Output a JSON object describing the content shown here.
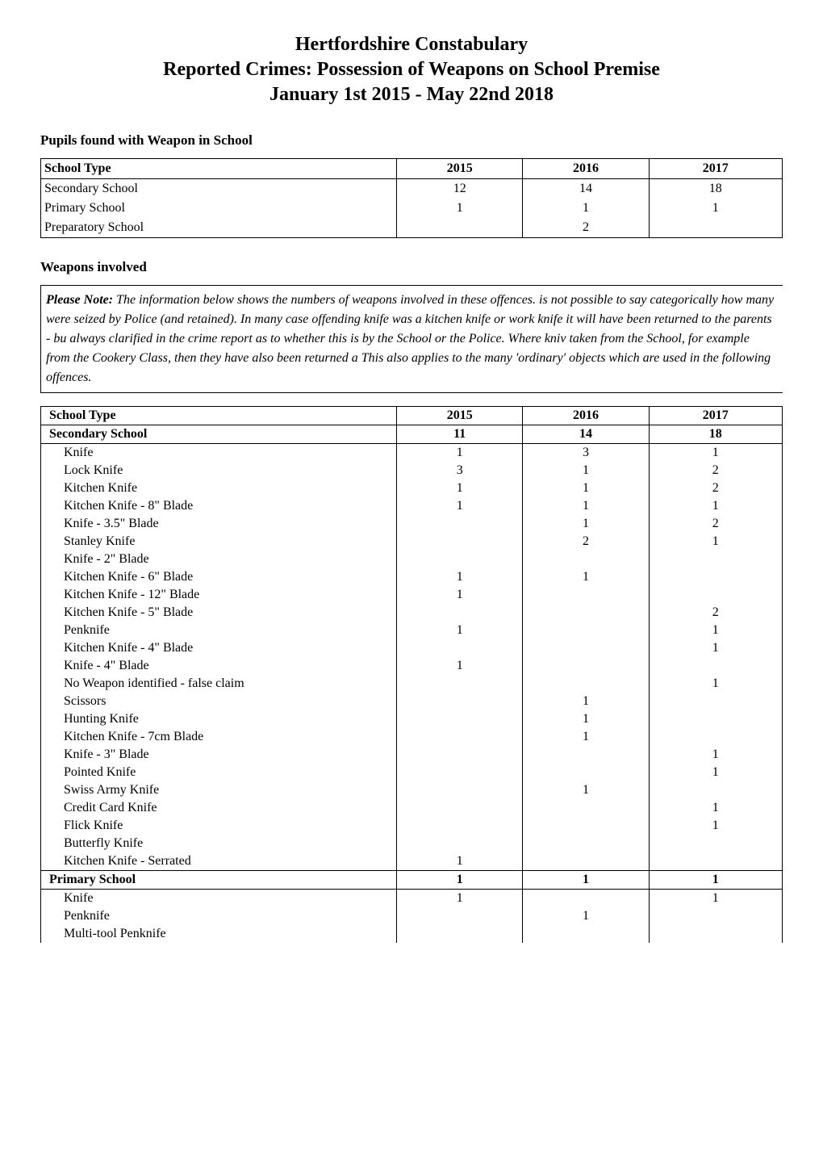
{
  "title": {
    "line1": "Hertfordshire Constabulary",
    "line2": "Reported Crimes: Possession of Weapons on School Premise",
    "line3": "January 1st 2015 - May 22nd 2018"
  },
  "section1": {
    "heading": "Pupils found with Weapon in School",
    "columns": [
      "School Type",
      "2015",
      "2016",
      "2017"
    ],
    "rows": [
      {
        "label": "Secondary School",
        "y2015": "12",
        "y2016": "14",
        "y2017": "18"
      },
      {
        "label": "Primary School",
        "y2015": "1",
        "y2016": "1",
        "y2017": "1"
      },
      {
        "label": "Preparatory School",
        "y2015": "",
        "y2016": "2",
        "y2017": ""
      }
    ]
  },
  "section2": {
    "heading": "Weapons involved",
    "note_lead": "Please Note:",
    "note_body": " The information below shows the numbers of weapons involved in these offences. is not possible to say categorically how many were seized by Police (and retained). In many case offending knife was a kitchen knife or work knife it will have been returned to the parents -  bu always clarified in the crime report as to whether this is by the School or the Police. Where kniv taken from the School, for example from the Cookery Class, then they have also been returned a  This also applies to the many 'ordinary' objects which are used in the following offences.",
    "columns": [
      "School Type",
      "2015",
      "2016",
      "2017"
    ],
    "groups": [
      {
        "label": "Secondary School",
        "totals": {
          "y2015": "11",
          "y2016": "14",
          "y2017": "18"
        },
        "items": [
          {
            "label": "Knife",
            "y2015": "1",
            "y2016": "3",
            "y2017": "1"
          },
          {
            "label": "Lock Knife",
            "y2015": "3",
            "y2016": "1",
            "y2017": "2"
          },
          {
            "label": "Kitchen Knife",
            "y2015": "1",
            "y2016": "1",
            "y2017": "2"
          },
          {
            "label": "Kitchen Knife - 8\" Blade",
            "y2015": "1",
            "y2016": "1",
            "y2017": "1"
          },
          {
            "label": "Knife - 3.5\" Blade",
            "y2015": "",
            "y2016": "1",
            "y2017": "2"
          },
          {
            "label": "Stanley Knife",
            "y2015": "",
            "y2016": "2",
            "y2017": "1"
          },
          {
            "label": "Knife - 2\" Blade",
            "y2015": "",
            "y2016": "",
            "y2017": ""
          },
          {
            "label": "Kitchen Knife - 6\" Blade",
            "y2015": "1",
            "y2016": "1",
            "y2017": ""
          },
          {
            "label": "Kitchen Knife - 12\" Blade",
            "y2015": "1",
            "y2016": "",
            "y2017": ""
          },
          {
            "label": "Kitchen Knife - 5\" Blade",
            "y2015": "",
            "y2016": "",
            "y2017": "2"
          },
          {
            "label": "Penknife",
            "y2015": "1",
            "y2016": "",
            "y2017": "1"
          },
          {
            "label": "Kitchen Knife - 4\" Blade",
            "y2015": "",
            "y2016": "",
            "y2017": "1"
          },
          {
            "label": "Knife - 4\" Blade",
            "y2015": "1",
            "y2016": "",
            "y2017": ""
          },
          {
            "label": "No Weapon identified - false claim",
            "y2015": "",
            "y2016": "",
            "y2017": "1"
          },
          {
            "label": "Scissors",
            "y2015": "",
            "y2016": "1",
            "y2017": ""
          },
          {
            "label": "Hunting Knife",
            "y2015": "",
            "y2016": "1",
            "y2017": ""
          },
          {
            "label": "Kitchen Knife - 7cm Blade",
            "y2015": "",
            "y2016": "1",
            "y2017": ""
          },
          {
            "label": "Knife - 3\" Blade",
            "y2015": "",
            "y2016": "",
            "y2017": "1"
          },
          {
            "label": "Pointed Knife",
            "y2015": "",
            "y2016": "",
            "y2017": "1"
          },
          {
            "label": "Swiss Army Knife",
            "y2015": "",
            "y2016": "1",
            "y2017": ""
          },
          {
            "label": "Credit Card Knife",
            "y2015": "",
            "y2016": "",
            "y2017": "1"
          },
          {
            "label": "Flick Knife",
            "y2015": "",
            "y2016": "",
            "y2017": "1"
          },
          {
            "label": "Butterfly Knife",
            "y2015": "",
            "y2016": "",
            "y2017": ""
          },
          {
            "label": "Kitchen Knife - Serrated",
            "y2015": "1",
            "y2016": "",
            "y2017": ""
          }
        ]
      },
      {
        "label": "Primary School",
        "totals": {
          "y2015": "1",
          "y2016": "1",
          "y2017": "1"
        },
        "items": [
          {
            "label": "Knife",
            "y2015": "1",
            "y2016": "",
            "y2017": "1"
          },
          {
            "label": "Penknife",
            "y2015": "",
            "y2016": "1",
            "y2017": ""
          },
          {
            "label": "Multi-tool Penknife",
            "y2015": "",
            "y2016": "",
            "y2017": ""
          }
        ]
      }
    ]
  },
  "styling": {
    "page_bg": "#ffffff",
    "text_color": "#000000",
    "border_color": "#000000",
    "title_fontsize": 24,
    "body_fontsize": 16,
    "col_widths_pct": [
      48,
      17,
      17,
      18
    ]
  }
}
